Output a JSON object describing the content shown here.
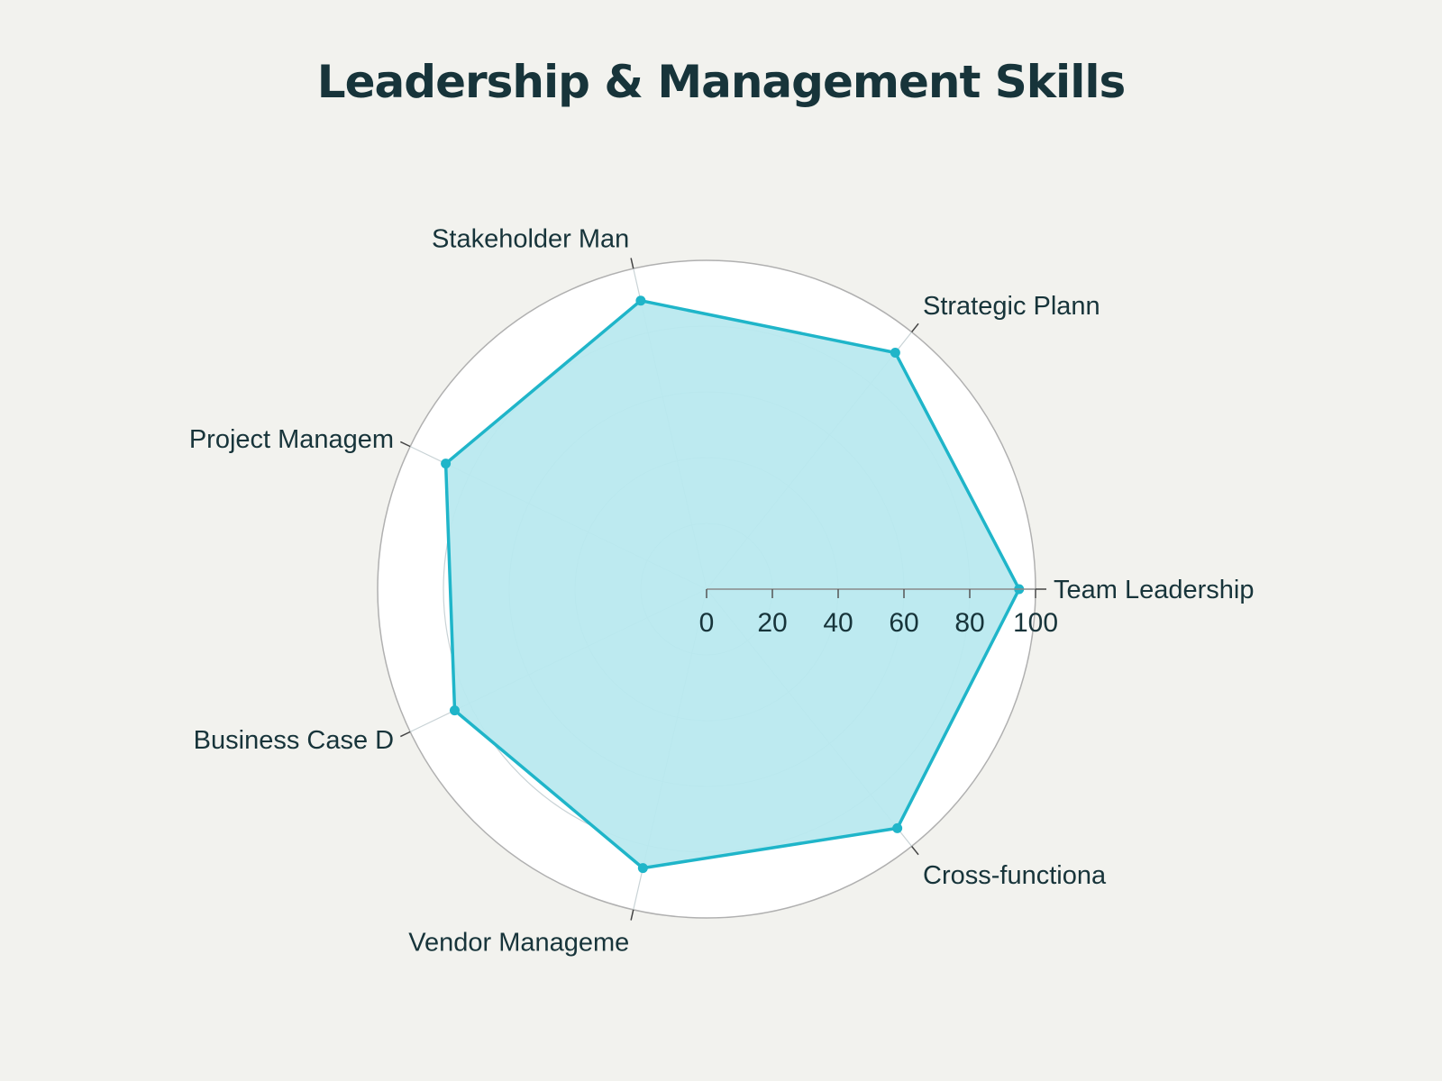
{
  "colors": {
    "background": "#f2f2ee",
    "plot_background": "#ffffff",
    "series_line": "#1fb5c9",
    "series_fill": "#b9e9ef",
    "title_text": "#17343a",
    "grid": "#c9d3d6",
    "outer_ring": "#b0b0b0"
  },
  "chart_data": {
    "type": "radar",
    "title": "Leadership & Management Skills",
    "categories": [
      "Team Leadership",
      "Strategic Plann",
      "Stakeholder Man",
      "Project Managem",
      "Business Case D",
      "Vendor Manageme",
      "Cross-functiona"
    ],
    "series": [
      {
        "values": [
          95,
          92,
          90,
          88,
          85,
          87,
          93
        ]
      }
    ],
    "radial_range": [
      0,
      100
    ],
    "radial_ticks": [
      0,
      20,
      40,
      60,
      80,
      100
    ],
    "radial_tick_labels": [
      "0",
      "20",
      "40",
      "60",
      "80",
      "100"
    ],
    "grid": true,
    "legend": false
  }
}
